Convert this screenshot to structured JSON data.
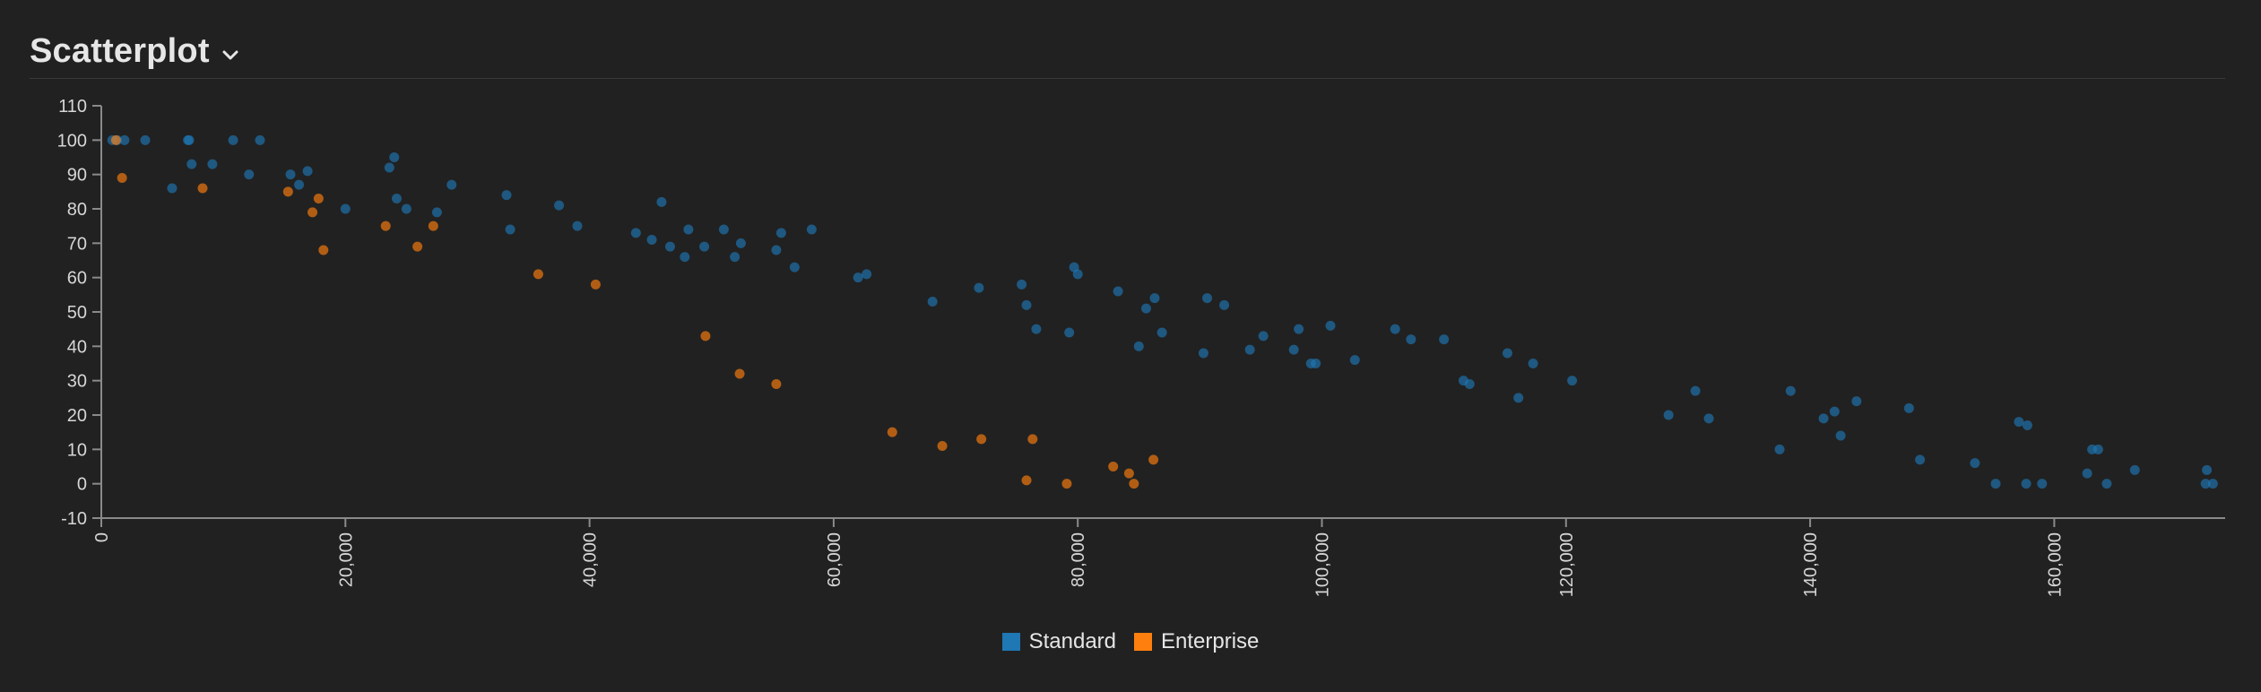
{
  "header": {
    "title": "Scatterplot"
  },
  "colors": {
    "standard": "#1f77b4",
    "enterprise": "#ff7f0e",
    "axis": "#8a8a8a",
    "background": "#212121"
  },
  "chart_data": {
    "type": "scatter",
    "title": "",
    "xlabel": "",
    "ylabel": "",
    "xlim": [
      0,
      174000
    ],
    "ylim": [
      -10,
      110
    ],
    "x_ticks": [
      0,
      20000,
      40000,
      60000,
      80000,
      100000,
      120000,
      140000,
      160000
    ],
    "x_tick_labels": [
      "0",
      "20,000",
      "40,000",
      "60,000",
      "80,000",
      "100,000",
      "120,000",
      "140,000",
      "160,000"
    ],
    "y_ticks": [
      -10,
      0,
      10,
      20,
      30,
      40,
      50,
      60,
      70,
      80,
      90,
      100,
      110
    ],
    "y_tick_labels": [
      "-10",
      "0",
      "10",
      "20",
      "30",
      "40",
      "50",
      "60",
      "70",
      "80",
      "90",
      "100",
      "110"
    ],
    "legend_position": "bottom-center",
    "grid": false,
    "series": [
      {
        "name": "Standard",
        "color": "#1f77b4",
        "points": [
          [
            900,
            100
          ],
          [
            1900,
            100
          ],
          [
            3600,
            100
          ],
          [
            7100,
            100
          ],
          [
            10800,
            100
          ],
          [
            13000,
            100
          ],
          [
            1300,
            100
          ],
          [
            7200,
            100
          ],
          [
            5800,
            86
          ],
          [
            7400,
            93
          ],
          [
            9100,
            93
          ],
          [
            12100,
            90
          ],
          [
            15500,
            90
          ],
          [
            16200,
            87
          ],
          [
            16900,
            91
          ],
          [
            20000,
            80
          ],
          [
            23600,
            92
          ],
          [
            24000,
            95
          ],
          [
            24200,
            83
          ],
          [
            25000,
            80
          ],
          [
            27500,
            79
          ],
          [
            28700,
            87
          ],
          [
            33200,
            84
          ],
          [
            33500,
            74
          ],
          [
            37500,
            81
          ],
          [
            39000,
            75
          ],
          [
            43800,
            73
          ],
          [
            45100,
            71
          ],
          [
            45900,
            82
          ],
          [
            46600,
            69
          ],
          [
            47800,
            66
          ],
          [
            48100,
            74
          ],
          [
            49400,
            69
          ],
          [
            51000,
            74
          ],
          [
            51900,
            66
          ],
          [
            52400,
            70
          ],
          [
            55300,
            68
          ],
          [
            55700,
            73
          ],
          [
            56800,
            63
          ],
          [
            58200,
            74
          ],
          [
            62000,
            60
          ],
          [
            62700,
            61
          ],
          [
            68100,
            53
          ],
          [
            71900,
            57
          ],
          [
            75400,
            58
          ],
          [
            75800,
            52
          ],
          [
            76600,
            45
          ],
          [
            79300,
            44
          ],
          [
            79700,
            63
          ],
          [
            80000,
            61
          ],
          [
            83300,
            56
          ],
          [
            85000,
            40
          ],
          [
            85600,
            51
          ],
          [
            86300,
            54
          ],
          [
            86900,
            44
          ],
          [
            90300,
            38
          ],
          [
            90600,
            54
          ],
          [
            92000,
            52
          ],
          [
            94100,
            39
          ],
          [
            95200,
            43
          ],
          [
            97700,
            39
          ],
          [
            98100,
            45
          ],
          [
            99100,
            35
          ],
          [
            99500,
            35
          ],
          [
            100700,
            46
          ],
          [
            102700,
            36
          ],
          [
            106000,
            45
          ],
          [
            107300,
            42
          ],
          [
            110000,
            42
          ],
          [
            111600,
            30
          ],
          [
            112100,
            29
          ],
          [
            115200,
            38
          ],
          [
            116100,
            25
          ],
          [
            117300,
            35
          ],
          [
            120500,
            30
          ],
          [
            128400,
            20
          ],
          [
            130600,
            27
          ],
          [
            131700,
            19
          ],
          [
            137500,
            10
          ],
          [
            138400,
            27
          ],
          [
            141100,
            19
          ],
          [
            142000,
            21
          ],
          [
            142500,
            14
          ],
          [
            143800,
            24
          ],
          [
            148100,
            22
          ],
          [
            149000,
            7
          ],
          [
            153500,
            6
          ],
          [
            155200,
            0
          ],
          [
            157100,
            18
          ],
          [
            157700,
            0
          ],
          [
            157800,
            17
          ],
          [
            159000,
            0
          ],
          [
            162700,
            3
          ],
          [
            163100,
            10
          ],
          [
            163600,
            10
          ],
          [
            164300,
            0
          ],
          [
            166600,
            4
          ],
          [
            172400,
            0
          ],
          [
            172500,
            4
          ],
          [
            173000,
            0
          ]
        ]
      },
      {
        "name": "Enterprise",
        "color": "#ff7f0e",
        "points": [
          [
            1200,
            100
          ],
          [
            1700,
            89
          ],
          [
            8300,
            86
          ],
          [
            15300,
            85
          ],
          [
            17300,
            79
          ],
          [
            17800,
            83
          ],
          [
            18200,
            68
          ],
          [
            23300,
            75
          ],
          [
            25900,
            69
          ],
          [
            27200,
            75
          ],
          [
            35800,
            61
          ],
          [
            40500,
            58
          ],
          [
            49500,
            43
          ],
          [
            52300,
            32
          ],
          [
            55300,
            29
          ],
          [
            64800,
            15
          ],
          [
            68900,
            11
          ],
          [
            72100,
            13
          ],
          [
            75800,
            1
          ],
          [
            76300,
            13
          ],
          [
            79100,
            0
          ],
          [
            82900,
            5
          ],
          [
            84200,
            3
          ],
          [
            84600,
            0
          ],
          [
            86200,
            7
          ]
        ]
      }
    ]
  }
}
